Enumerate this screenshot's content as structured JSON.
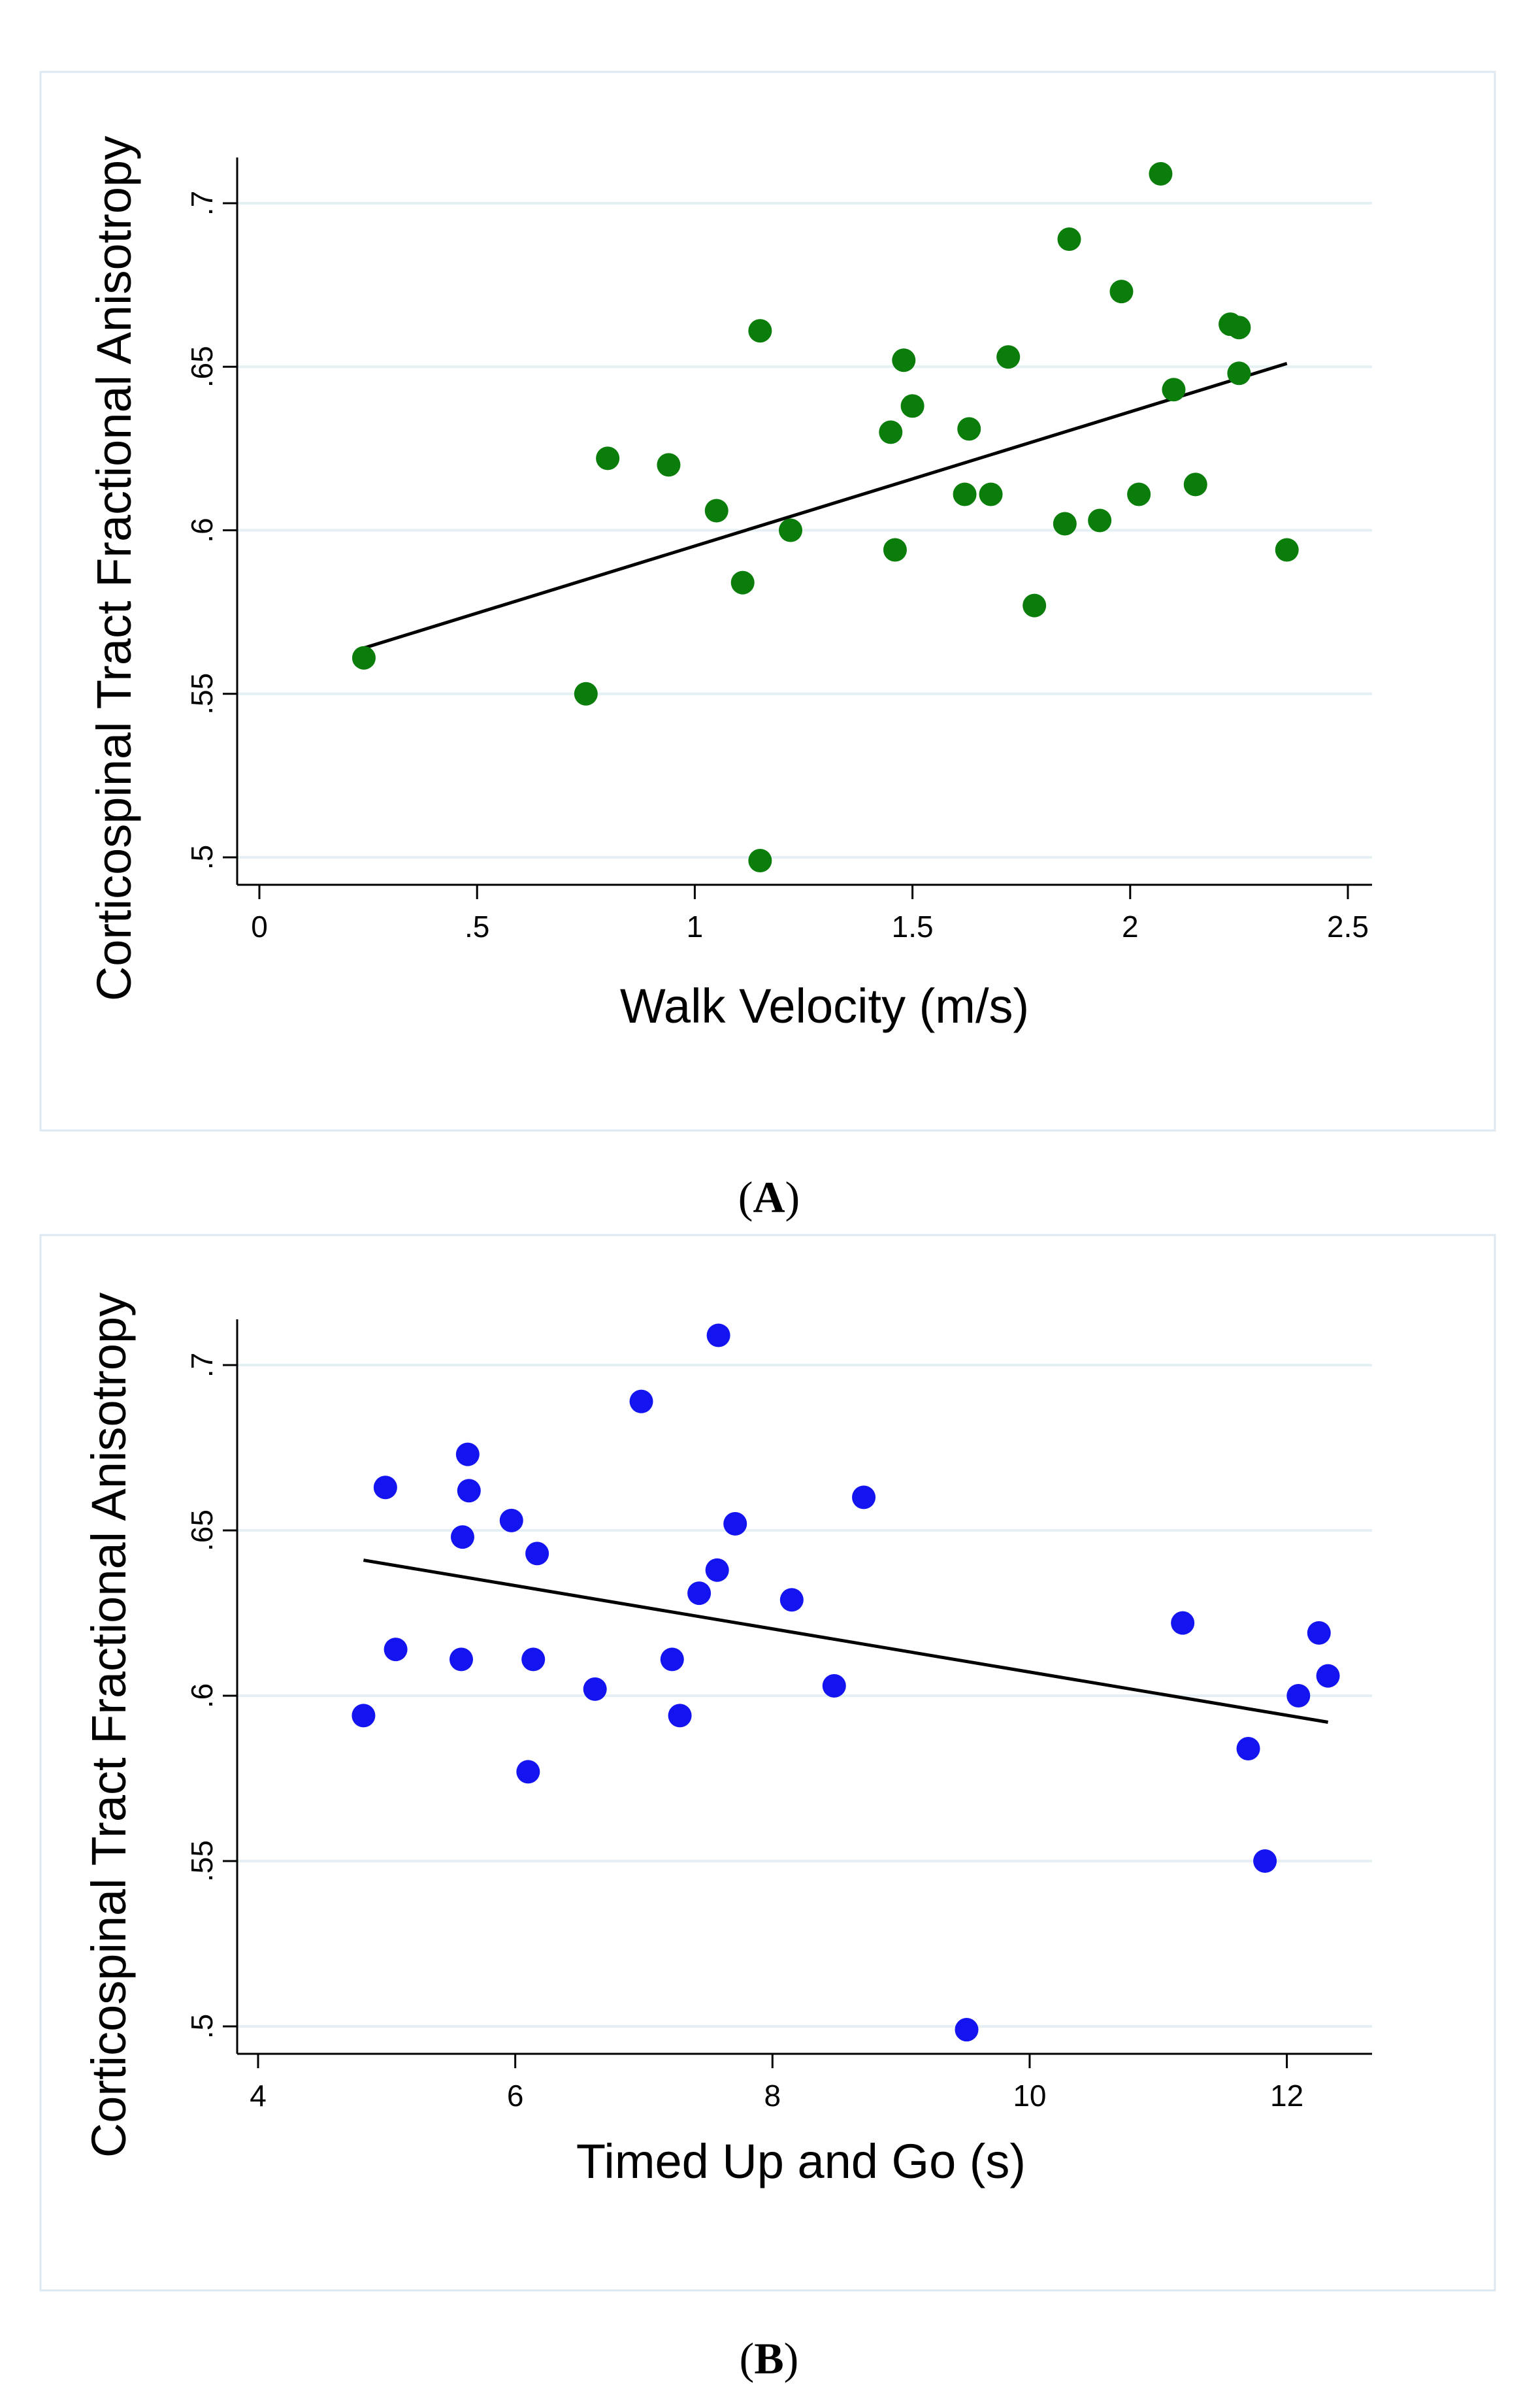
{
  "captions": {
    "a": "(A)",
    "a_open": "(",
    "a_letter": "A",
    "a_close": ")",
    "b": "(B)",
    "b_open": "(",
    "b_letter": "B",
    "b_close": ")"
  },
  "chart_data": [
    {
      "type": "scatter",
      "panel": "A",
      "xlabel": "Walk Velocity (m/s)",
      "ylabel": "Corticospinal Tract Fractional Anisotropy",
      "xlim": [
        0,
        2.5
      ],
      "ylim": [
        0.5,
        0.7
      ],
      "x_ticks": [
        0,
        0.5,
        1,
        1.5,
        2,
        2.5
      ],
      "x_tick_labels": [
        "0",
        ".5",
        "1",
        "1.5",
        "2",
        "2.5"
      ],
      "y_ticks": [
        0.5,
        0.55,
        0.6,
        0.65,
        0.7
      ],
      "y_tick_labels": [
        ".5",
        ".55",
        ".6",
        ".65",
        ".7"
      ],
      "grid": "horizontal",
      "marker_color": "#0a7d0a",
      "points": [
        [
          0.24,
          0.561
        ],
        [
          0.75,
          0.55
        ],
        [
          0.8,
          0.622
        ],
        [
          0.94,
          0.62
        ],
        [
          1.05,
          0.606
        ],
        [
          1.11,
          0.584
        ],
        [
          1.15,
          0.661
        ],
        [
          1.15,
          0.499
        ],
        [
          1.22,
          0.6
        ],
        [
          1.45,
          0.63
        ],
        [
          1.46,
          0.594
        ],
        [
          1.48,
          0.652
        ],
        [
          1.5,
          0.638
        ],
        [
          1.62,
          0.611
        ],
        [
          1.63,
          0.631
        ],
        [
          1.68,
          0.611
        ],
        [
          1.72,
          0.653
        ],
        [
          1.78,
          0.577
        ],
        [
          1.85,
          0.602
        ],
        [
          1.86,
          0.689
        ],
        [
          1.93,
          0.603
        ],
        [
          1.98,
          0.673
        ],
        [
          2.02,
          0.611
        ],
        [
          2.07,
          0.709
        ],
        [
          2.1,
          0.643
        ],
        [
          2.15,
          0.614
        ],
        [
          2.23,
          0.663
        ],
        [
          2.25,
          0.662
        ],
        [
          2.25,
          0.648
        ],
        [
          2.36,
          0.594
        ]
      ],
      "fit_line": {
        "x": [
          0.24,
          2.36
        ],
        "y": [
          0.564,
          0.651
        ]
      }
    },
    {
      "type": "scatter",
      "panel": "B",
      "xlabel": "Timed Up and Go (s)",
      "ylabel": "Corticospinal Tract Fractional Anisotropy",
      "xlim": [
        4,
        12.5
      ],
      "ylim": [
        0.5,
        0.7
      ],
      "x_ticks": [
        4,
        6,
        8,
        10,
        12
      ],
      "x_tick_labels": [
        "4",
        "6",
        "8",
        "10",
        "12"
      ],
      "y_ticks": [
        0.5,
        0.55,
        0.6,
        0.65,
        0.7
      ],
      "y_tick_labels": [
        ".5",
        ".55",
        ".6",
        ".65",
        ".7"
      ],
      "grid": "horizontal",
      "marker_color": "#1414f0",
      "points": [
        [
          4.82,
          0.594
        ],
        [
          4.99,
          0.663
        ],
        [
          5.07,
          0.614
        ],
        [
          5.58,
          0.611
        ],
        [
          5.59,
          0.648
        ],
        [
          5.63,
          0.673
        ],
        [
          5.64,
          0.662
        ],
        [
          5.97,
          0.653
        ],
        [
          6.1,
          0.577
        ],
        [
          6.14,
          0.611
        ],
        [
          6.17,
          0.643
        ],
        [
          6.62,
          0.602
        ],
        [
          6.98,
          0.689
        ],
        [
          7.22,
          0.611
        ],
        [
          7.28,
          0.594
        ],
        [
          7.43,
          0.631
        ],
        [
          7.57,
          0.638
        ],
        [
          7.58,
          0.709
        ],
        [
          7.71,
          0.652
        ],
        [
          8.15,
          0.629
        ],
        [
          8.48,
          0.603
        ],
        [
          8.71,
          0.66
        ],
        [
          9.51,
          0.499
        ],
        [
          11.19,
          0.622
        ],
        [
          11.7,
          0.584
        ],
        [
          11.83,
          0.55
        ],
        [
          12.09,
          0.6
        ],
        [
          12.25,
          0.619
        ],
        [
          12.32,
          0.606
        ]
      ],
      "fit_line": {
        "x": [
          4.82,
          12.32
        ],
        "y": [
          0.641,
          0.592
        ]
      }
    }
  ]
}
